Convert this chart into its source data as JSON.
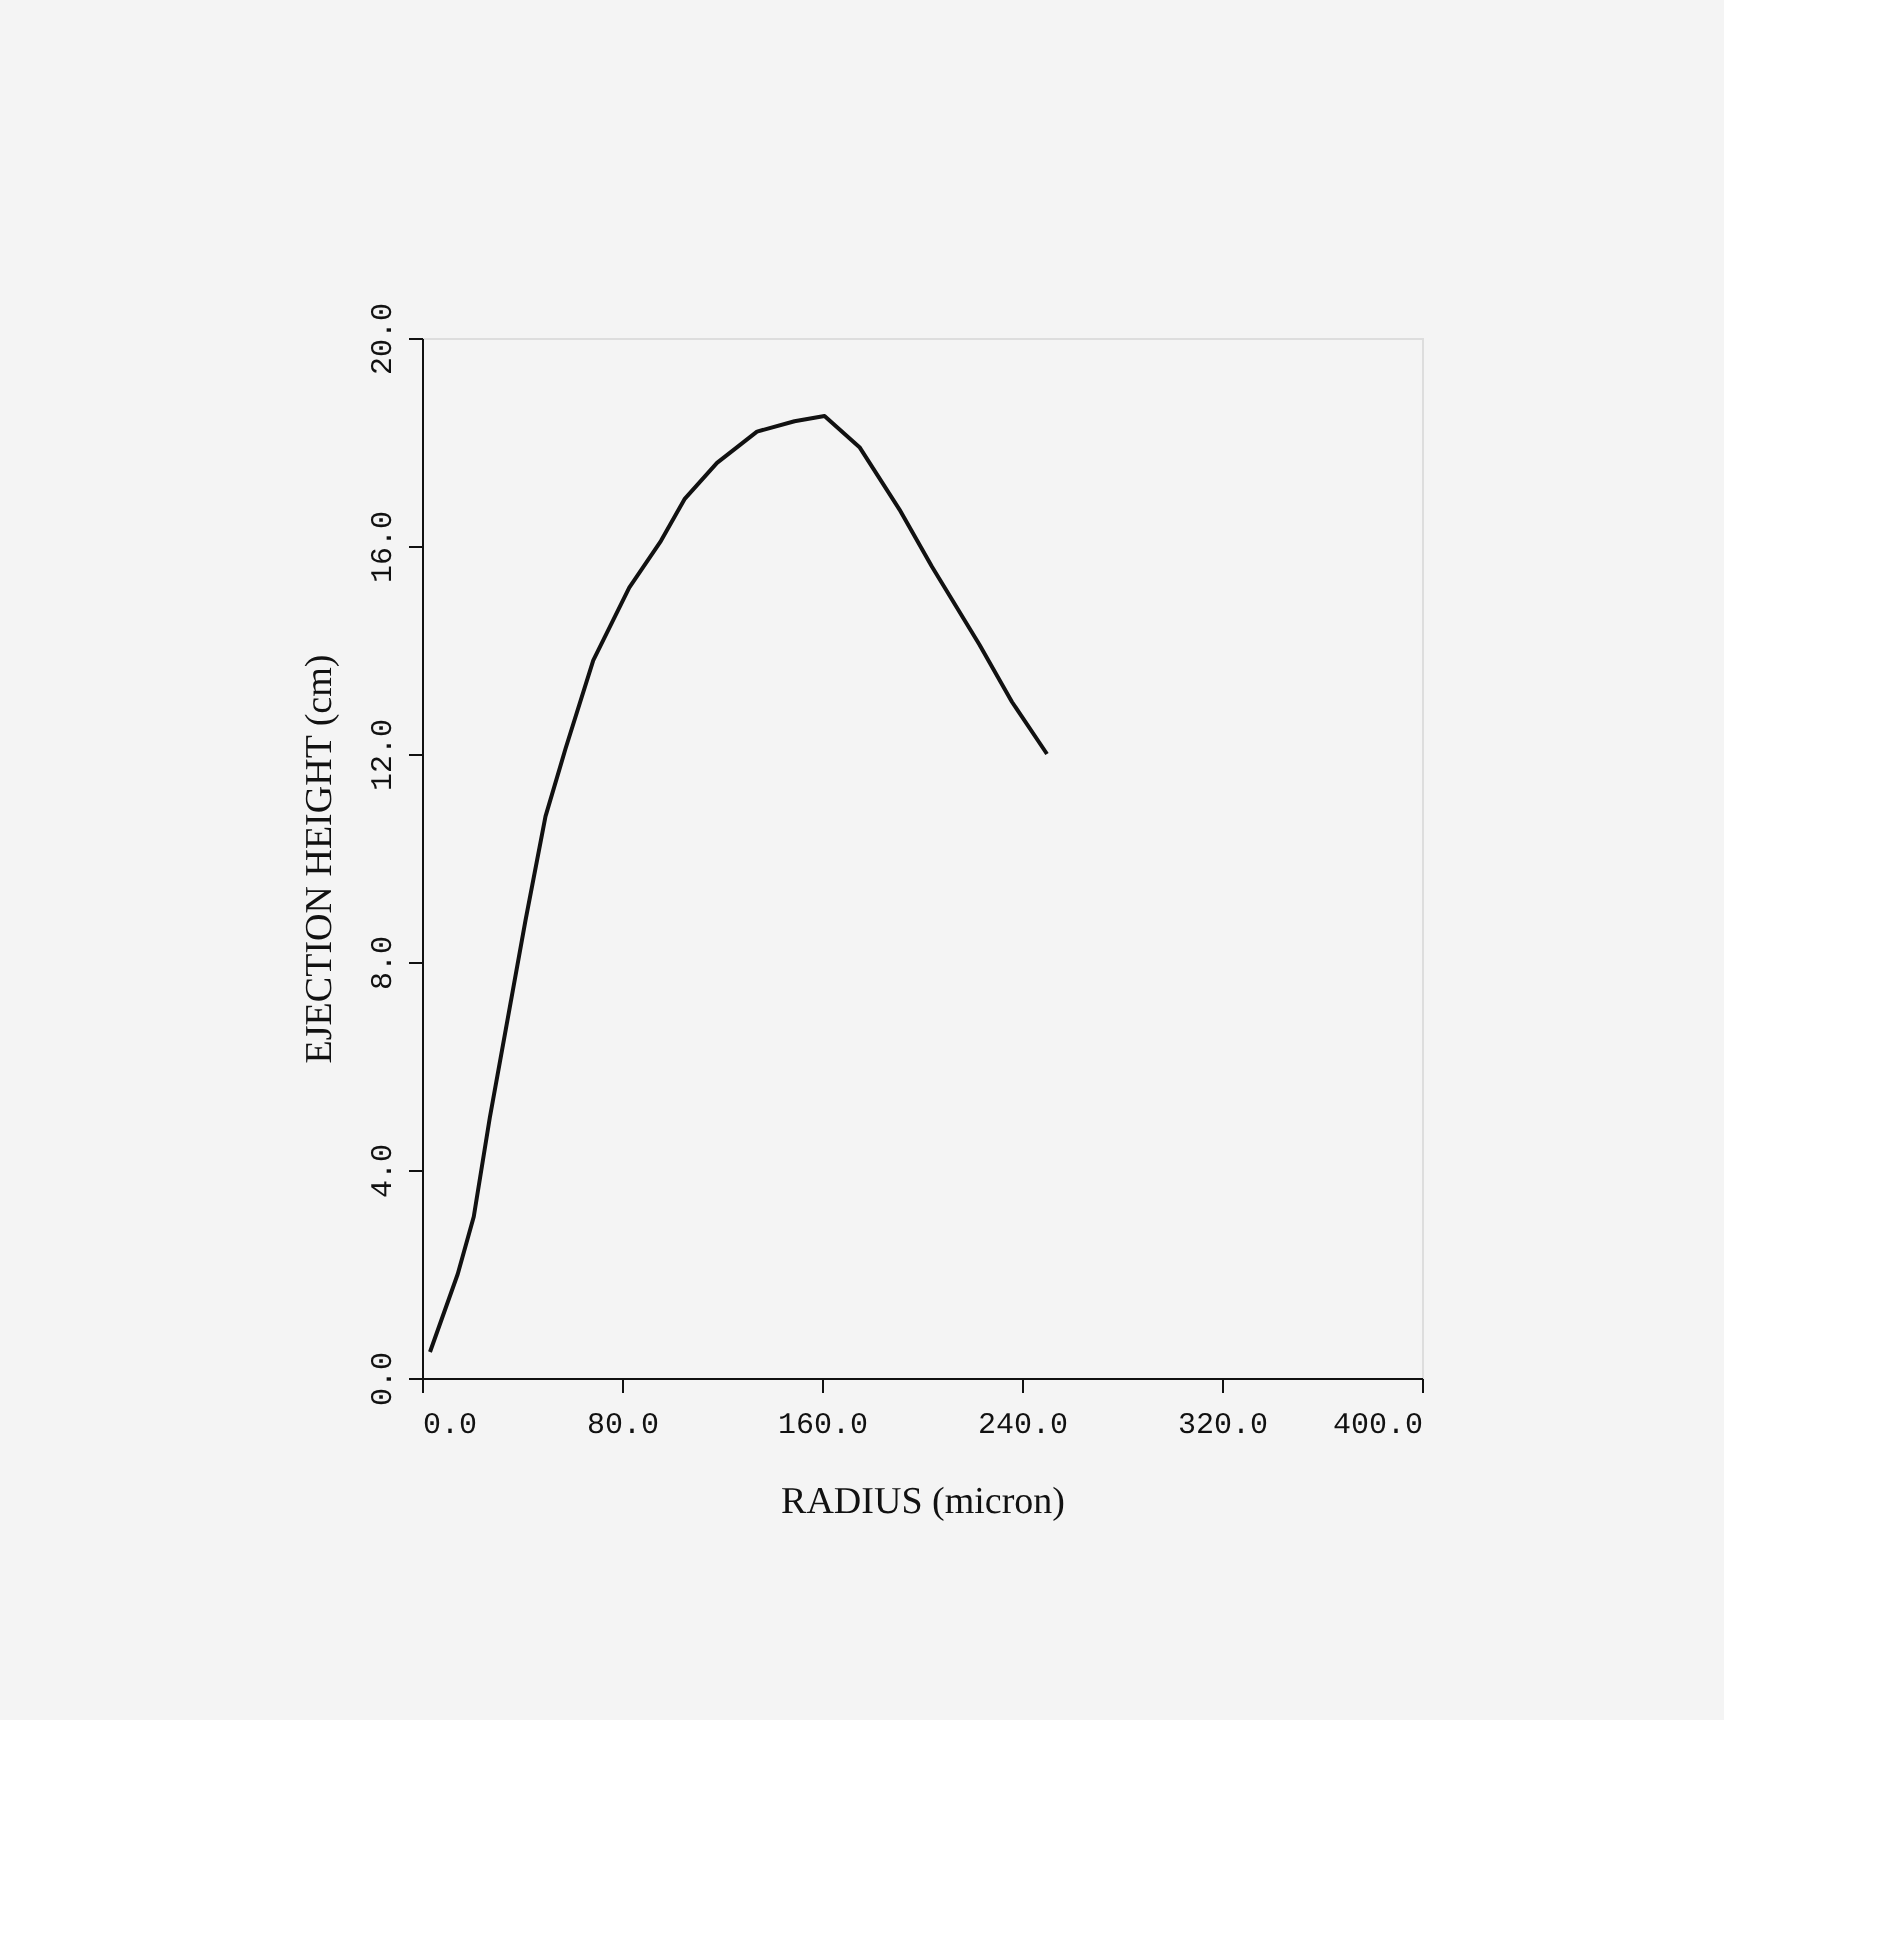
{
  "chart_data": {
    "type": "line",
    "xlabel": "RADIUS (micron)",
    "ylabel": "EJECTION HEIGHT (cm)",
    "x": [
      3.2,
      14.3,
      20.7,
      27.1,
      33.5,
      41.4,
      49.4,
      57.4,
      68.5,
      82.9,
      95.6,
      105,
      118,
      134,
      149,
      161,
      175,
      191,
      204,
      223,
      236,
      250
    ],
    "values": [
      0.5,
      2.0,
      3.1,
      5.0,
      6.7,
      8.8,
      10.8,
      12.1,
      13.8,
      15.2,
      16.1,
      16.9,
      17.6,
      18.2,
      18.4,
      18.5,
      17.9,
      16.7,
      15.6,
      14.1,
      13.0,
      12.0
    ],
    "color": "#111111",
    "xlim": [
      0,
      400
    ],
    "ylim": [
      0,
      20
    ],
    "xticks": [
      {
        "value": 0,
        "label": "0.0"
      },
      {
        "value": 80,
        "label": "80.0"
      },
      {
        "value": 160,
        "label": "160.0"
      },
      {
        "value": 240,
        "label": "240.0"
      },
      {
        "value": 320,
        "label": "320.0"
      },
      {
        "value": 400,
        "label": "400.0"
      }
    ],
    "yticks": [
      {
        "value": 0,
        "label": "0.0"
      },
      {
        "value": 4,
        "label": "4.0"
      },
      {
        "value": 8,
        "label": "8.0"
      },
      {
        "value": 12,
        "label": "12.0"
      },
      {
        "value": 16,
        "label": "16.0"
      },
      {
        "value": 20,
        "label": "20.0"
      }
    ],
    "grid": false,
    "marker": "none",
    "line_style": "solid"
  }
}
